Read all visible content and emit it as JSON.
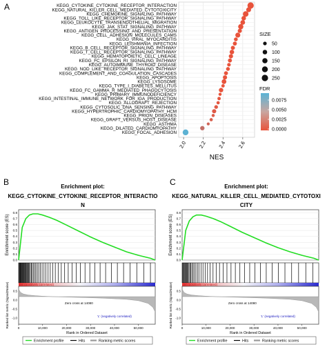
{
  "panel_labels": {
    "a": "A",
    "b": "B",
    "c": "C"
  },
  "chart_data": [
    {
      "type": "scatter",
      "panel": "A",
      "xlabel": "NES",
      "xlim": [
        1.95,
        2.72
      ],
      "xticks": [
        "2.0",
        "2.2",
        "2.4",
        "2.6"
      ],
      "xtick_values": [
        2.0,
        2.2,
        2.4,
        2.6
      ],
      "grid": true,
      "legend_size": {
        "title": "SIZE",
        "values": [
          50,
          100,
          150,
          200,
          250
        ]
      },
      "legend_color": {
        "title": "FDR",
        "ticks": [
          "0.0075",
          "0.0050",
          "0.0025",
          "0.0000"
        ],
        "range": [
          0,
          0.009
        ],
        "low_color": "#e8533b",
        "high_color": "#5ab4d6"
      },
      "categories": [
        "KEGG_CYTOKINE_CYTOKINE_RECEPTOR_INTERACTION",
        "KEGG_NATURAL_KILLER_CELL_MEDIATED_CYTOTOXICITY",
        "KEGG_CHEMOKINE_SIGNALING_PATHWAY",
        "KEGG_TOLL_LIKE_RECEPTOR_SIGNALING_PATHWAY",
        "KEGG_LEUKOCYTE_TRANSENDOTHELIAL_MIGRATION",
        "KEGG_JAK_STAT_SIGNALING_PATHWAY",
        "KEGG_ANTIGEN_PROCESSING_AND_PRESENTATION",
        "KEGG_CELL_ADHESION_MOLECULES_CAMS",
        "KEGG_VIRAL_MYOCARDITIS",
        "KEGG_LEISHMANIA_INFECTION",
        "KEGG_B_CELL_RECEPTOR_SIGNALING_PATHWAY",
        "KEGG_T_CELL_RECEPTOR_SIGNALING_PATHWAY",
        "KEGG_HEMATOPOIETIC_CELL_LINEAGE",
        "KEGG_FC_EPSILON_RI_SIGNALING_PATHWAY",
        "KEGG_AUTOIMMUNE_THYROID_DISEASE",
        "KEGG_NOD_LIKE_RECEPTOR_SIGNALING_PATHWAY",
        "KEGG_COMPLEMENT_AND_COAGULATION_CASCADES",
        "KEGG_APOPTOSIS",
        "KEGG_LYSOSOME",
        "KEGG_TYPE_I_DIABETES_MELLITUS",
        "KEGG_FC_GAMMA_R_MEDIATED_PHAGOCYTOSIS",
        "KEGG_PRIMARY_IMMUNODEFICIENCY",
        "KEGG_INTESTINAL_IMMUNE_NETWORK_FOR_IGA_PRODUCTION",
        "KEGG_ALLOGRAFT_REJECTION",
        "KEGG_CYTOSOLIC_DNA_SENSING_PATHWAY",
        "KEGG_HYPERTROPHIC_CARDIOMYOPATHY_HCM",
        "KEGG_PRION_DISEASES",
        "KEGG_GRAFT_VERSUS_HOST_DISEASE",
        "KEGG_ASTHMA",
        "KEGG_DILATED_CARDIOMYOPATHY",
        "KEGG_FOCAL_ADHESION"
      ],
      "nes": [
        2.68,
        2.66,
        2.63,
        2.61,
        2.6,
        2.58,
        2.57,
        2.55,
        2.53,
        2.52,
        2.5,
        2.49,
        2.48,
        2.47,
        2.46,
        2.45,
        2.43,
        2.42,
        2.41,
        2.4,
        2.38,
        2.37,
        2.36,
        2.35,
        2.33,
        2.31,
        2.3,
        2.28,
        2.25,
        2.19,
        2.02
      ],
      "size": [
        250,
        120,
        180,
        100,
        110,
        150,
        80,
        130,
        60,
        70,
        75,
        100,
        85,
        70,
        50,
        60,
        65,
        80,
        110,
        40,
        90,
        30,
        40,
        35,
        55,
        80,
        30,
        35,
        25,
        90,
        200
      ],
      "fdr": [
        0,
        0,
        0,
        0,
        0,
        0,
        0,
        0,
        0,
        0,
        0,
        0,
        0,
        0,
        0,
        0,
        0,
        0,
        0,
        0,
        0,
        0,
        0.0003,
        0.0003,
        0.0005,
        0.0006,
        0.0008,
        0.001,
        0.0015,
        0.0025,
        0.0088
      ]
    },
    {
      "type": "line",
      "panel": "B",
      "title": "Enrichment plot:",
      "subtitle_line1": "KEGG_CYTOKINE_CYTOKINE_RECEPTOR_INTERACTIO",
      "subtitle_line2": "N",
      "ylabel": "Enrichment score (ES)",
      "yticks": [
        "0.8",
        "0.7",
        "0.6",
        "0.5",
        "0.4",
        "0.3",
        "0.2",
        "0.1",
        "0.0"
      ],
      "ylim": [
        0,
        0.85
      ],
      "xlim": [
        0,
        57000
      ],
      "xticks": [
        "0",
        "10,000",
        "20,000",
        "30,000",
        "40,000",
        "50,000"
      ],
      "xlabel": "Rank in Ordered Dataset",
      "metric_ylabel": "Ranked list metric (Signal2Noise)",
      "metric_yticks": [
        "0.5",
        "0.0",
        "-0.5",
        "-1.0"
      ],
      "pos_label": "'H' (positively correlated)",
      "neg_label": "'L' (negatively correlated)",
      "zero_cross": "Zero cross at 14080",
      "curve_x": [
        0,
        1500,
        3000,
        4500,
        6000,
        8000,
        10000,
        13000,
        16000,
        20000,
        25000,
        30000,
        35000,
        40000,
        45000,
        50000,
        55000,
        57000
      ],
      "es_values": [
        0,
        0.55,
        0.7,
        0.76,
        0.78,
        0.78,
        0.76,
        0.72,
        0.67,
        0.59,
        0.49,
        0.39,
        0.3,
        0.22,
        0.14,
        0.08,
        0.03,
        0.0
      ],
      "hits": [
        200,
        350,
        600,
        800,
        1000,
        1200,
        1450,
        1600,
        1900,
        2100,
        2300,
        2600,
        2800,
        3100,
        3300,
        3600,
        3900,
        4200,
        4500,
        4900,
        5300,
        5700,
        6200,
        6700,
        7200,
        7800,
        8400,
        9100,
        9800,
        10600,
        11400,
        12300,
        13200,
        14200,
        15300,
        16500,
        17800,
        19200,
        20700,
        22300,
        24000,
        25800,
        27700,
        29700,
        31800,
        34000,
        36300,
        38700,
        41200,
        43800,
        46500,
        49300,
        52200,
        55000
      ]
    },
    {
      "type": "line",
      "panel": "C",
      "title": "Enrichment plot:",
      "subtitle_line1": "KEGG_NATURAL_KILLER_CELL_MEDIATED_CYTOTOXI",
      "subtitle_line2": "CITY",
      "ylabel": "Enrichment score (ES)",
      "yticks": [
        "0.8",
        "0.7",
        "0.6",
        "0.5",
        "0.4",
        "0.3",
        "0.2",
        "0.1",
        "0.0"
      ],
      "ylim": [
        0,
        0.85
      ],
      "xlim": [
        0,
        57000
      ],
      "xticks": [
        "0",
        "10,000",
        "20,000",
        "30,000",
        "40,000",
        "50,000"
      ],
      "xlabel": "Rank in Ordered Dataset",
      "metric_ylabel": "Ranked list metric (Signal2Noise)",
      "metric_yticks": [
        "0.5",
        "0.0",
        "-0.5",
        "-1.0"
      ],
      "pos_label": "'H' (positively correlated)",
      "neg_label": "'L' (negatively correlated)",
      "zero_cross": "Zero cross at 14080",
      "curve_x": [
        0,
        1500,
        3000,
        4500,
        6000,
        8000,
        10000,
        13000,
        16000,
        20000,
        25000,
        30000,
        35000,
        40000,
        45000,
        50000,
        55000,
        57000
      ],
      "es_values": [
        0,
        0.5,
        0.66,
        0.73,
        0.76,
        0.76,
        0.74,
        0.7,
        0.65,
        0.57,
        0.47,
        0.38,
        0.29,
        0.21,
        0.14,
        0.08,
        0.03,
        0.0
      ],
      "hits": [
        150,
        400,
        700,
        950,
        1250,
        1550,
        1850,
        2150,
        2500,
        2850,
        3250,
        3650,
        4100,
        4600,
        5150,
        5750,
        6400,
        7100,
        7900,
        8700,
        9600,
        10600,
        11700,
        12900,
        14200,
        15600,
        17100,
        18700,
        20400,
        22200,
        24100,
        26100,
        28200,
        30400,
        32700,
        35100,
        37600,
        40200,
        42900,
        45700,
        48600,
        51600,
        54600
      ]
    }
  ],
  "gsea_legend": {
    "enrichment": "Enrichment profile",
    "hits": "Hits",
    "ranking": "Ranking metric scores"
  },
  "colors": {
    "es_line": "#22dd22",
    "dot_high": "#e8533b",
    "dot_low": "#5ab4d6",
    "heat_pos": "#e03030",
    "heat_neg": "#2a2ad0"
  }
}
